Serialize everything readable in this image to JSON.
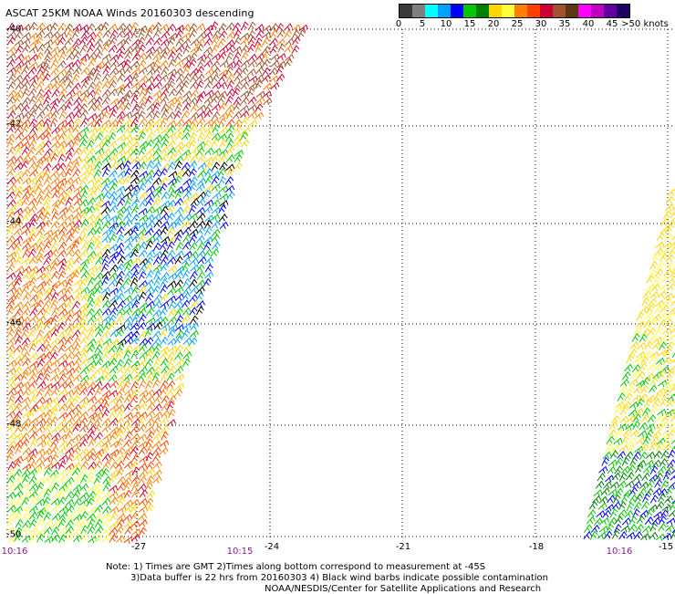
{
  "title": "ASCAT 25KM NOAA Winds 20160303 descending",
  "legend": {
    "colors": [
      "#3a3a3a",
      "#7f7f7f",
      "#00ffff",
      "#00a2ff",
      "#0000ff",
      "#00c800",
      "#008000",
      "#ffd700",
      "#ffff40",
      "#ff7f00",
      "#ff4000",
      "#cc0033",
      "#a0522d",
      "#5a3818",
      "#ff00ff",
      "#c000c0",
      "#6000a0",
      "#200060"
    ],
    "labels": [
      "0",
      "5",
      "10",
      "15",
      "20",
      "25",
      "30",
      "35",
      "40",
      "45",
      ">50 knots"
    ]
  },
  "map": {
    "lon_ticks": [
      "-27",
      "-24",
      "-21",
      "-18",
      "-15"
    ],
    "lat_ticks": [
      "-40",
      "-42",
      "-44",
      "-46",
      "-48",
      "-50"
    ],
    "times": [
      "10:16",
      "10:15",
      "10:16"
    ]
  },
  "notes": {
    "line1": "Note: 1) Times are GMT 2)Times along bottom correspond to measurement at -45S",
    "line2": "3)Data buffer is 22 hrs from 20160303 4) Black wind barbs indicate possible contamination",
    "line3": "NOAA/NESDIS/Center for Satellite Applications and Research"
  }
}
